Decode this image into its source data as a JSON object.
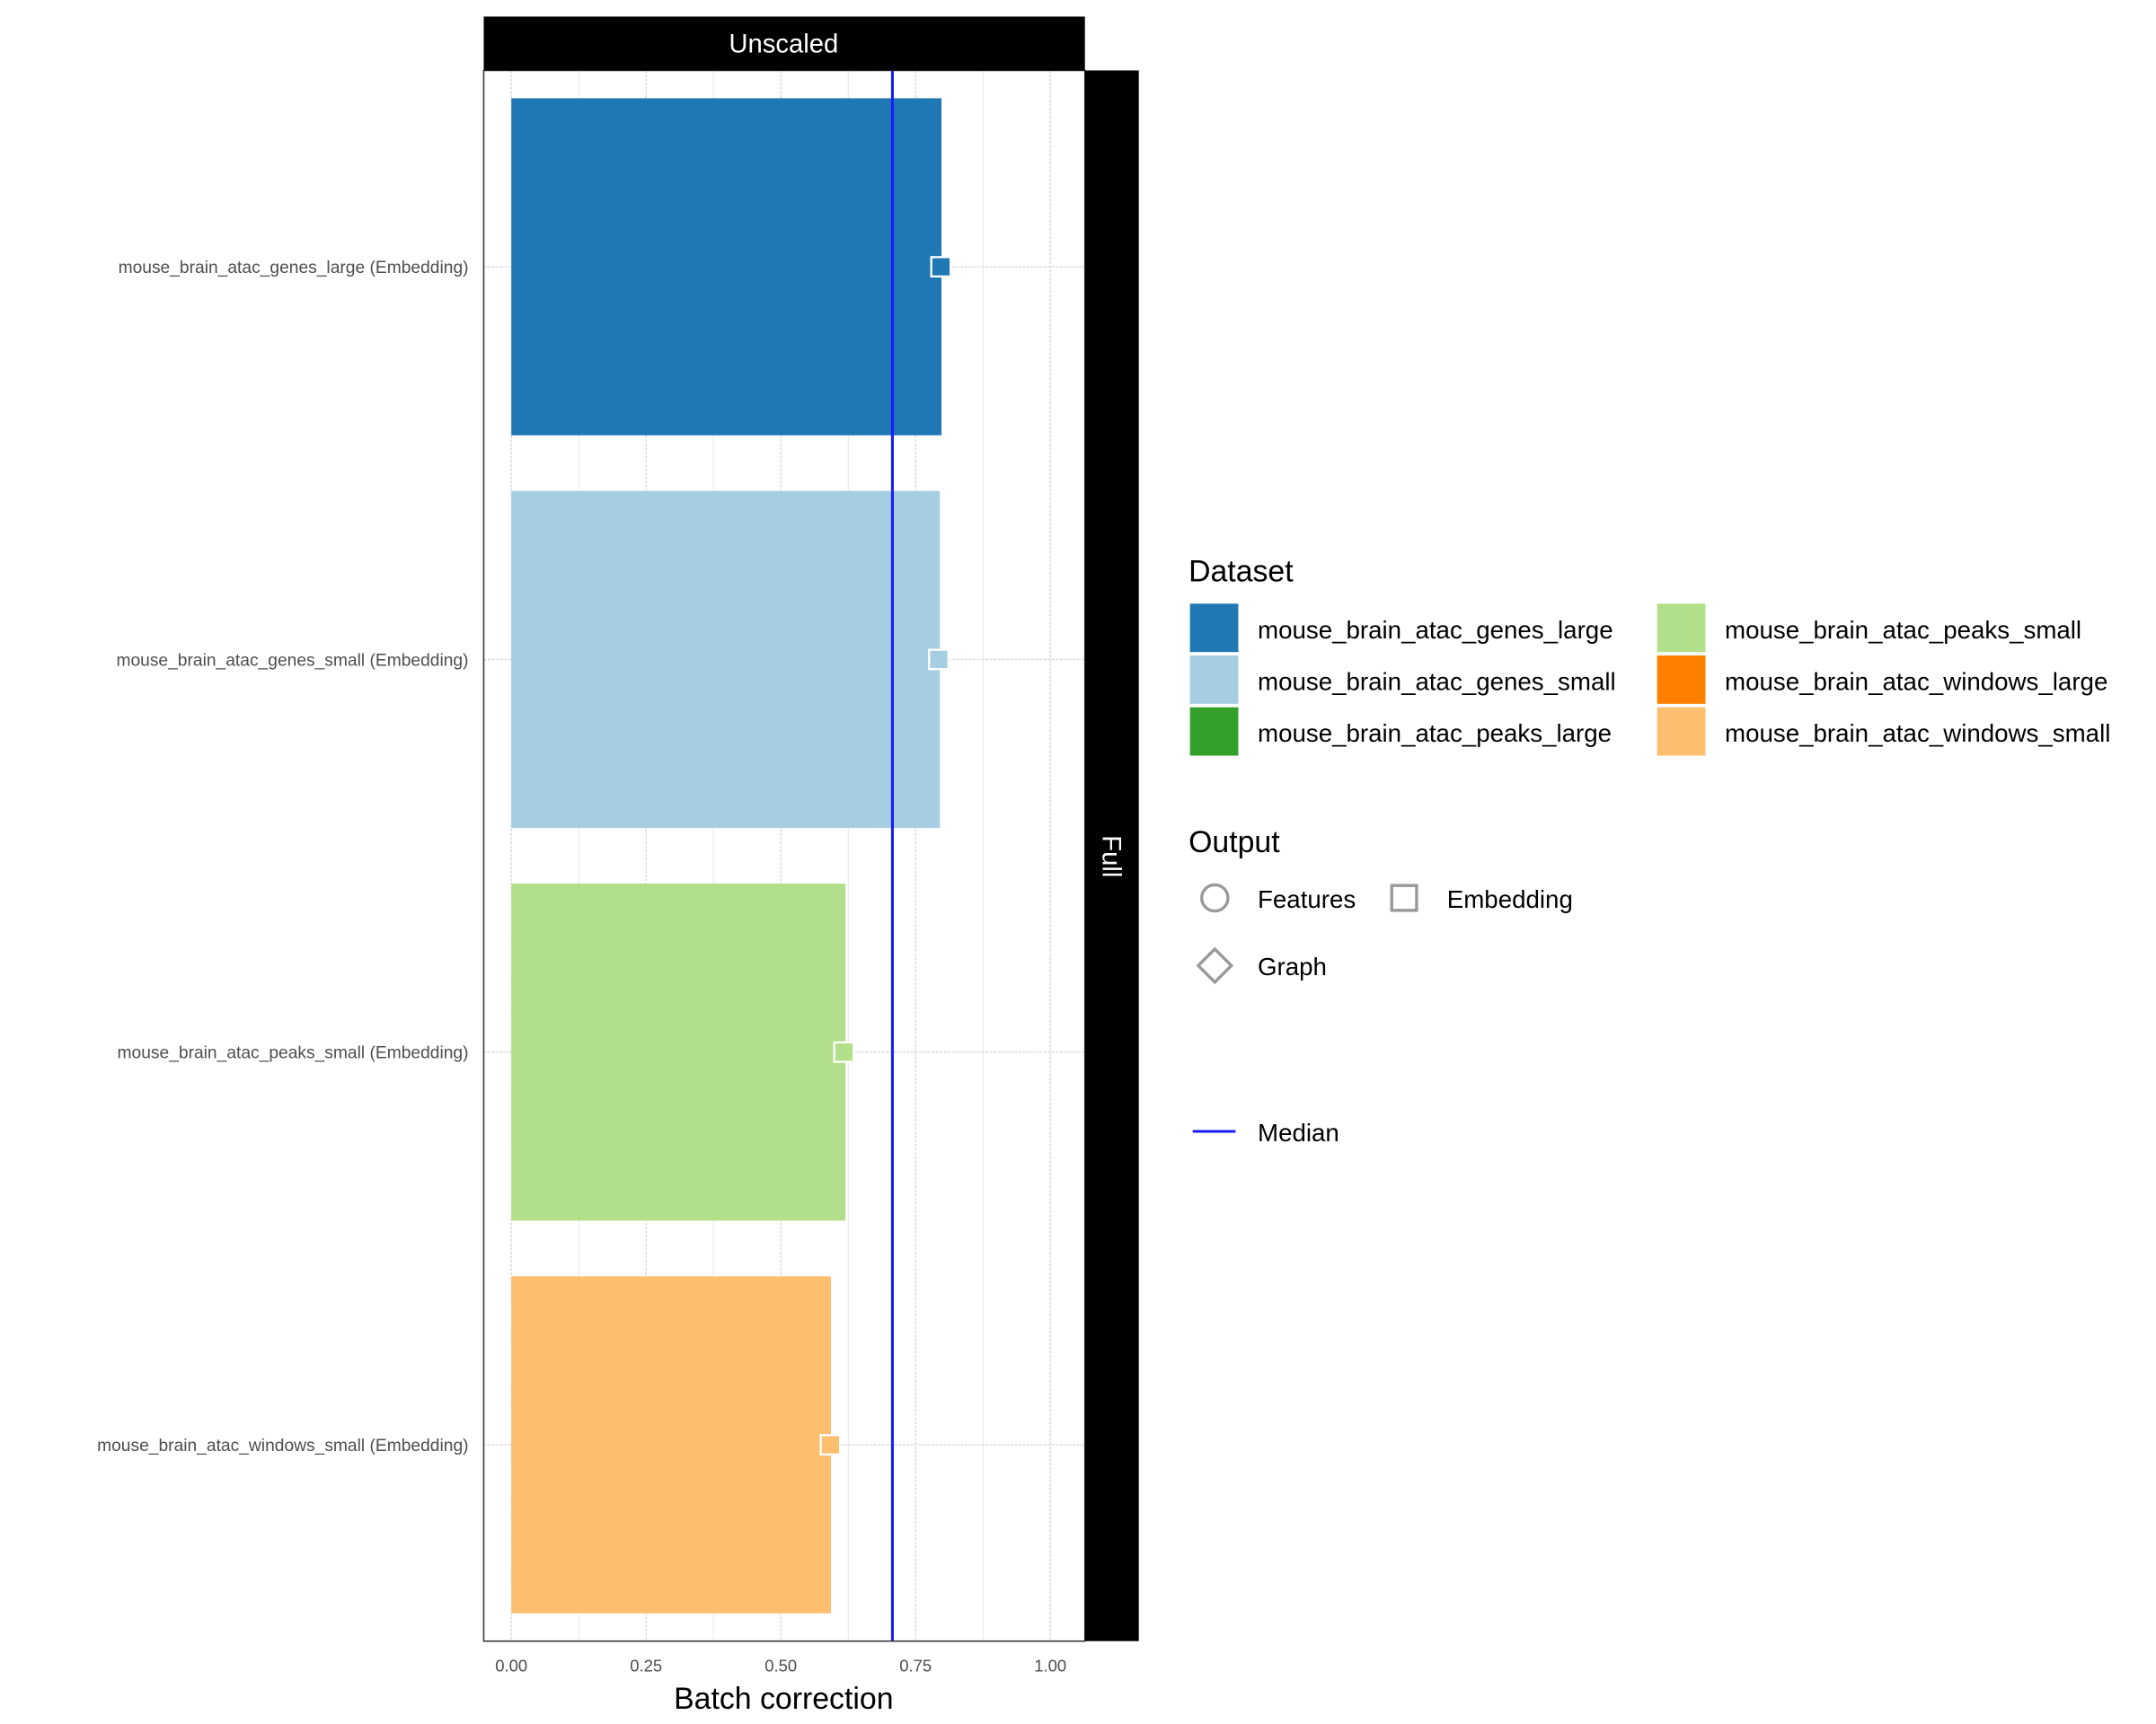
{
  "chart_data": {
    "type": "bar",
    "orientation": "horizontal",
    "facet_top": "Unscaled",
    "facet_right": "Full",
    "xlabel": "Batch correction",
    "ylabel": "",
    "xlim": [
      0,
      1
    ],
    "xticks": [
      "0.00",
      "0.25",
      "0.50",
      "0.75",
      "1.00"
    ],
    "xtick_values": [
      0,
      0.25,
      0.5,
      0.75,
      1.0
    ],
    "grid": true,
    "categories": [
      "mouse_brain_atac_genes_large (Embedding)",
      "mouse_brain_atac_genes_small (Embedding)",
      "mouse_brain_atac_peaks_small (Embedding)",
      "mouse_brain_atac_windows_small (Embedding)"
    ],
    "values": [
      0.798,
      0.795,
      0.62,
      0.593
    ],
    "point_values": [
      0.797,
      0.793,
      0.617,
      0.592
    ],
    "point_shape": "square",
    "bar_colors": [
      "#1F78B4",
      "#A6CEE3",
      "#B2DF8A",
      "#FDBF6F"
    ],
    "median": 0.707,
    "median_color": "#1A1AFF",
    "legend": {
      "position": "right",
      "dataset_title": "Dataset",
      "datasets": [
        {
          "label": "mouse_brain_atac_genes_large",
          "color": "#1F78B4"
        },
        {
          "label": "mouse_brain_atac_genes_small",
          "color": "#A6CEE3"
        },
        {
          "label": "mouse_brain_atac_peaks_large",
          "color": "#33A02C"
        },
        {
          "label": "mouse_brain_atac_peaks_small",
          "color": "#B2DF8A"
        },
        {
          "label": "mouse_brain_atac_windows_large",
          "color": "#FF7F00"
        },
        {
          "label": "mouse_brain_atac_windows_small",
          "color": "#FDBF6F"
        }
      ],
      "output_title": "Output",
      "outputs": [
        {
          "label": "Features",
          "shape": "circle"
        },
        {
          "label": "Embedding",
          "shape": "square"
        },
        {
          "label": "Graph",
          "shape": "diamond"
        }
      ],
      "median_label": "Median"
    }
  }
}
